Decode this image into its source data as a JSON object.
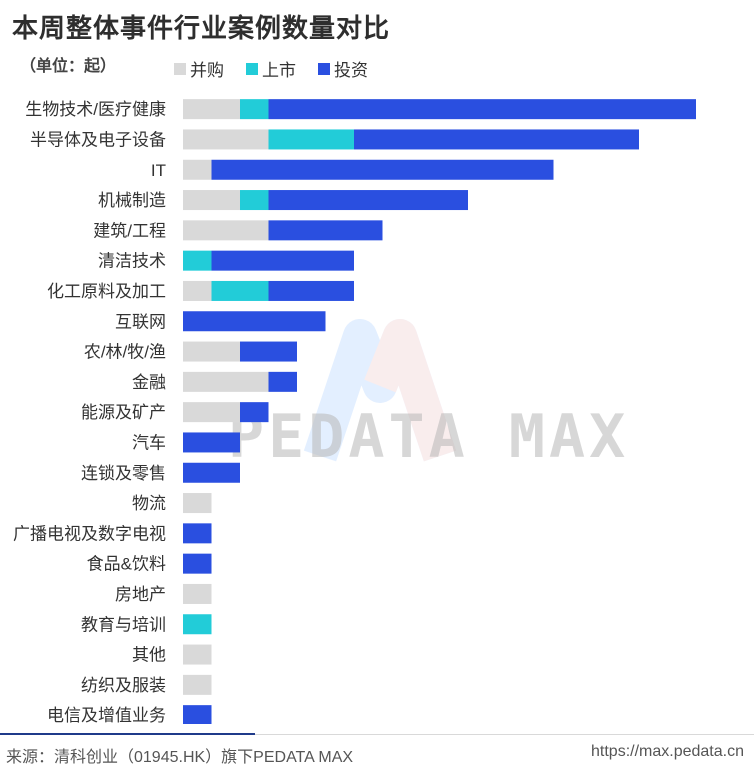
{
  "title": "本周整体事件行业案例数量对比",
  "unit_label": "（单位：起）",
  "colors": {
    "merger": "#d9d9d9",
    "ipo": "#22ccd8",
    "investment": "#2a4fe0"
  },
  "chart_data": {
    "type": "bar",
    "orientation": "horizontal",
    "stacked": true,
    "title": "本周整体事件行业案例数量对比",
    "unit": "起",
    "xlim": [
      0,
      18
    ],
    "legend_position": "top-left",
    "categories": [
      "生物技术/医疗健康",
      "半导体及电子设备",
      "IT",
      "机械制造",
      "建筑/工程",
      "清洁技术",
      "化工原料及加工",
      "互联网",
      "农/林/牧/渔",
      "金融",
      "能源及矿产",
      "汽车",
      "连锁及零售",
      "物流",
      "广播电视及数字电视",
      "食品&饮料",
      "房地产",
      "教育与培训",
      "其他",
      "纺织及服装",
      "电信及增值业务"
    ],
    "series": [
      {
        "name": "并购",
        "color": "#d9d9d9",
        "values": [
          2,
          3,
          1,
          2,
          3,
          0,
          1,
          0,
          2,
          3,
          2,
          0,
          0,
          1,
          0,
          0,
          1,
          0,
          1,
          1,
          0
        ]
      },
      {
        "name": "上市",
        "color": "#22ccd8",
        "values": [
          1,
          3,
          0,
          1,
          0,
          1,
          2,
          0,
          0,
          0,
          0,
          0,
          0,
          0,
          0,
          0,
          0,
          1,
          0,
          0,
          0
        ]
      },
      {
        "name": "投资",
        "color": "#2a4fe0",
        "values": [
          15,
          10,
          12,
          7,
          4,
          5,
          3,
          5,
          2,
          1,
          1,
          2,
          2,
          0,
          1,
          1,
          0,
          0,
          0,
          0,
          1
        ]
      }
    ]
  },
  "watermark": "PEDATA MAX",
  "footer": {
    "source": "来源：清科创业（01945.HK）旗下PEDATA MAX",
    "url": "https://max.pedata.cn"
  }
}
